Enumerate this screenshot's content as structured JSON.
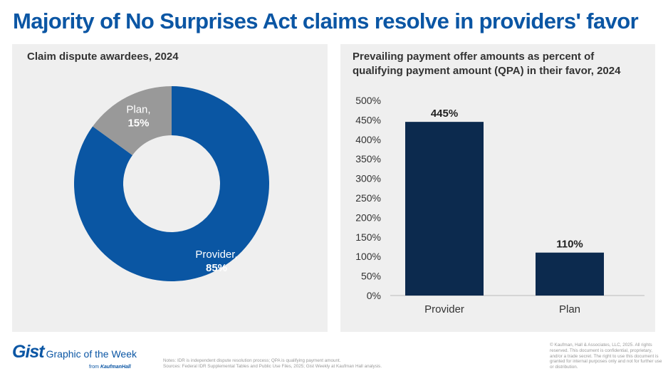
{
  "title": "Majority of No Surprises Act claims resolve in providers' favor",
  "chart_data": [
    {
      "type": "pie",
      "title": "Claim dispute awardees, 2024",
      "donut": true,
      "slices": [
        {
          "label": "Provider,",
          "value": 85,
          "value_label": "85%",
          "color": "#0a56a3"
        },
        {
          "label": "Plan,",
          "value": 15,
          "value_label": "15%",
          "color": "#999999"
        }
      ]
    },
    {
      "type": "bar",
      "title_lines": [
        "Prevailing payment offer amounts as percent of",
        "qualifying payment amount (QPA) in their favor, 2024"
      ],
      "categories": [
        "Provider",
        "Plan"
      ],
      "values": [
        445,
        110
      ],
      "data_labels": [
        "445%",
        "110%"
      ],
      "ylim": [
        0,
        500
      ],
      "yticks": [
        0,
        50,
        100,
        150,
        200,
        250,
        300,
        350,
        400,
        450,
        500
      ],
      "ytick_labels": [
        "0%",
        "50%",
        "100%",
        "150%",
        "200%",
        "250%",
        "300%",
        "350%",
        "400%",
        "450%",
        "500%"
      ],
      "grid": false,
      "color": "#0c2a4e"
    }
  ],
  "footer": {
    "logo_gist": "Gist",
    "logo_tagline": "Graphic of the Week",
    "logo_from": "from",
    "logo_brand": "KaufmanHall",
    "notes": "Notes: IDR is independent dispute resolution process; QPA is qualifying payment amount.",
    "sources": "Sources: Federal IDR Supplemental Tables and Public Use Files, 2025; Gist Weekly at Kaufman Hall analysis.",
    "copyright": "© Kaufman, Hall & Associates, LLC, 2025. All rights reserved. This document is confidential, proprietary, and/or a trade secret. The right to use this document is granted for internal purposes only and not for further use or distribution."
  }
}
